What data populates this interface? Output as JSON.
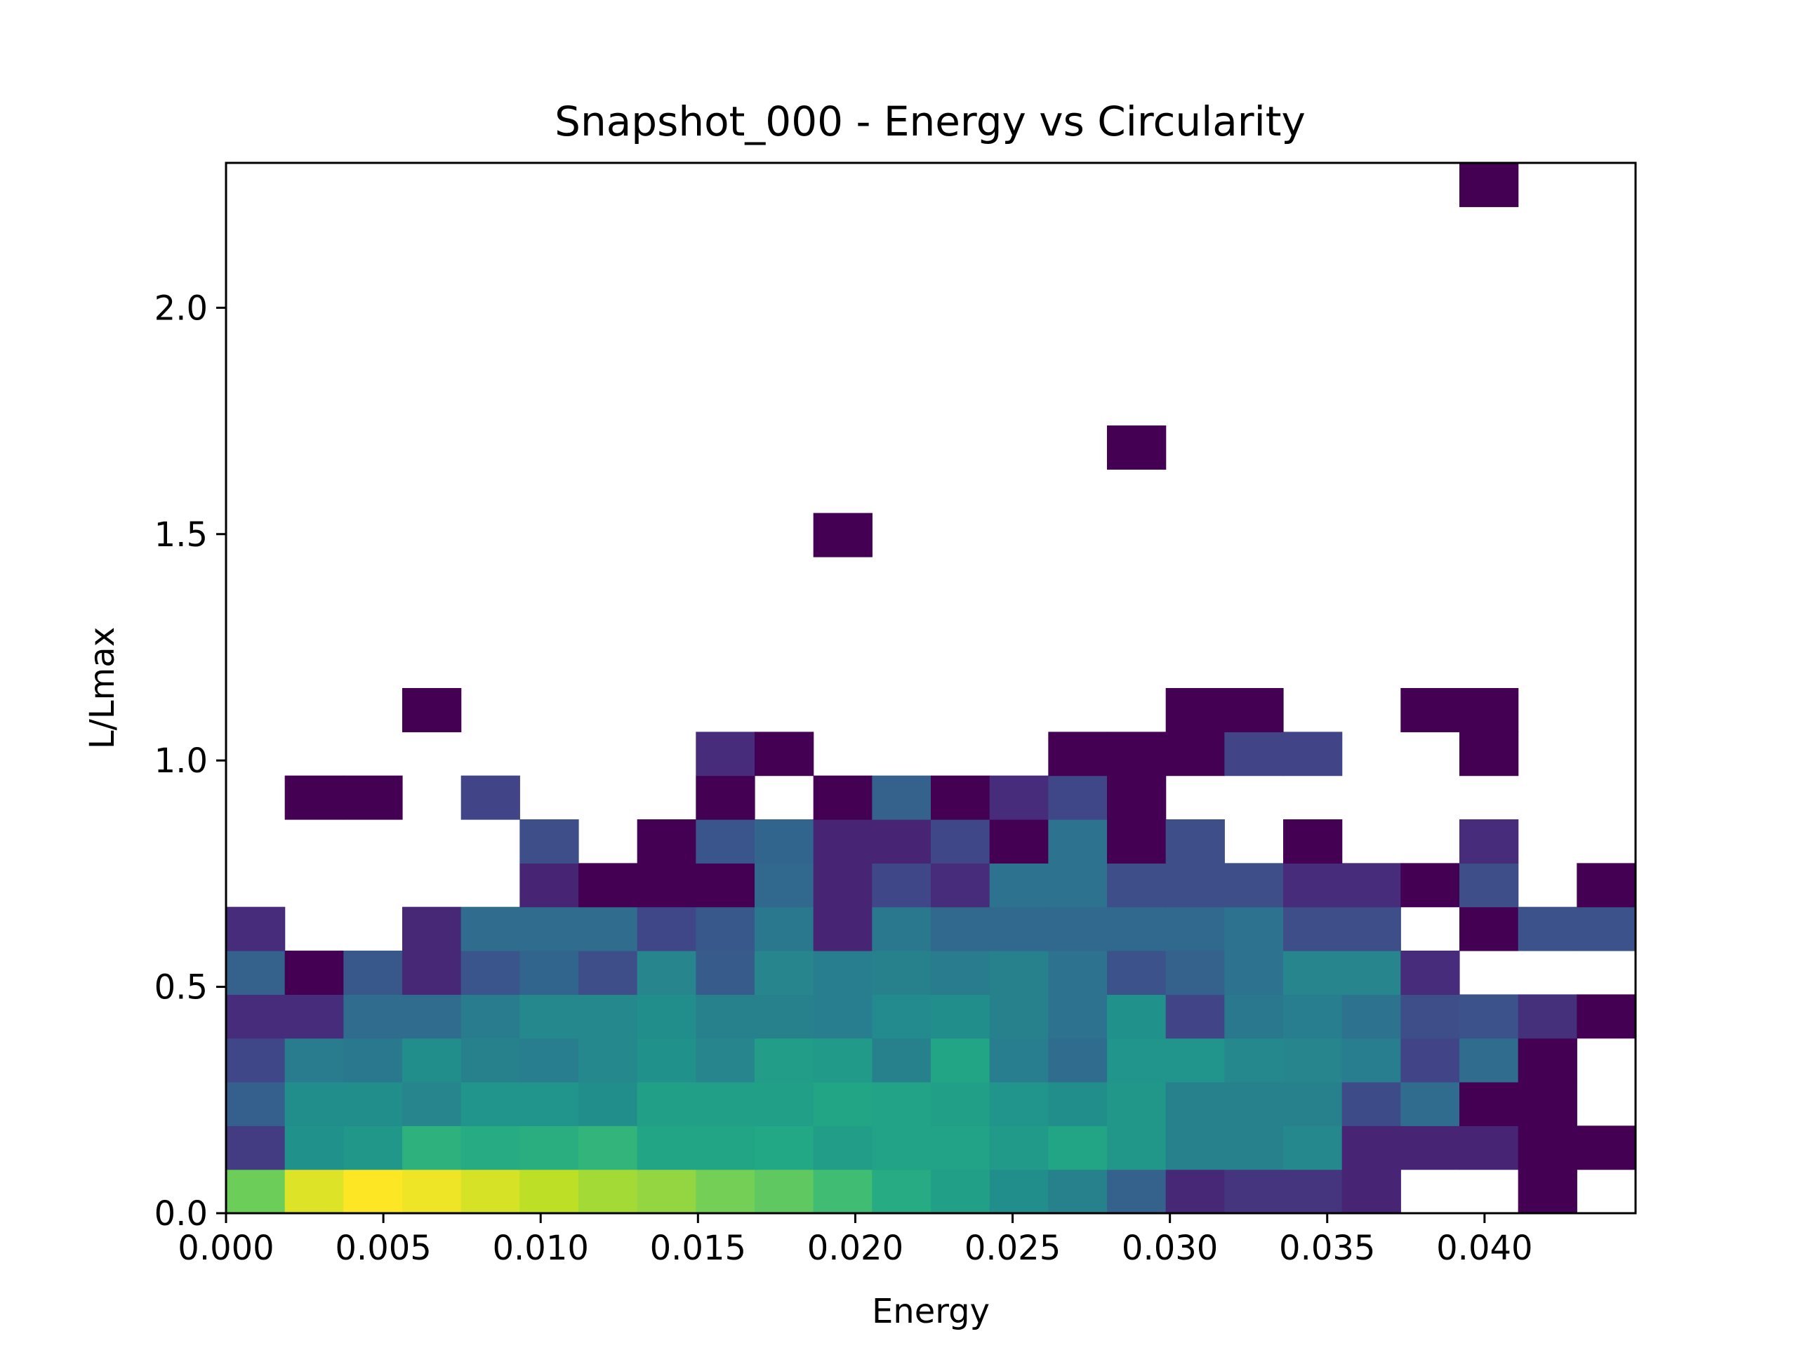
{
  "chart_data": {
    "type": "heatmap",
    "title": "Snapshot_000 - Energy vs Circularity",
    "xlabel": "Energy",
    "ylabel": "L/Lmax",
    "xlim": [
      0.0,
      0.0448
    ],
    "ylim": [
      0.0,
      2.32
    ],
    "x_ticks": [
      "0.000",
      "0.005",
      "0.010",
      "0.015",
      "0.020",
      "0.025",
      "0.030",
      "0.035",
      "0.040"
    ],
    "y_ticks": [
      "0.0",
      "0.5",
      "1.0",
      "1.5",
      "2.0"
    ],
    "x_bin_edges": [
      0.0,
      0.001867,
      0.003733,
      0.0056,
      0.007467,
      0.009333,
      0.0112,
      0.013067,
      0.014933,
      0.0168,
      0.018667,
      0.020533,
      0.0224,
      0.024267,
      0.026133,
      0.028,
      0.029867,
      0.031733,
      0.0336,
      0.035467,
      0.037333,
      0.0392,
      0.041067,
      0.042933,
      0.0448
    ],
    "y_bin_edges": [
      0.0,
      0.0967,
      0.1933,
      0.29,
      0.3867,
      0.4833,
      0.58,
      0.6767,
      0.7733,
      0.87,
      0.9667,
      1.0633,
      1.16,
      1.2567,
      1.3533,
      1.45,
      1.5467,
      1.6433,
      1.74,
      1.8367,
      1.9333,
      2.03,
      2.1267,
      2.2233,
      2.32
    ],
    "colormap": "viridis",
    "color_scale": "log",
    "empty_bins": "white",
    "color_value_note_max": 4,
    "counts_rows_bottom_to_top": [
      [
        3.1,
        3.8,
        4.0,
        3.9,
        3.75,
        3.6,
        3.45,
        3.35,
        3.15,
        3.0,
        2.75,
        2.45,
        2.25,
        1.95,
        1.75,
        1.25,
        0.45,
        0.6,
        0.6,
        0.4,
        null,
        null,
        0.0,
        null
      ],
      [
        0.7,
        2.0,
        2.1,
        2.55,
        2.45,
        2.5,
        2.6,
        2.35,
        2.35,
        2.4,
        2.2,
        2.3,
        2.3,
        2.15,
        2.35,
        2.1,
        1.75,
        1.75,
        1.85,
        0.4,
        0.4,
        0.4,
        0.0,
        0.0
      ],
      [
        1.2,
        1.95,
        1.95,
        1.8,
        2.05,
        2.05,
        1.95,
        2.25,
        2.25,
        2.25,
        2.35,
        2.3,
        2.25,
        2.05,
        1.95,
        2.1,
        1.75,
        1.75,
        1.75,
        0.9,
        1.4,
        0.0,
        0.0,
        null
      ],
      [
        0.85,
        1.65,
        1.6,
        1.95,
        1.75,
        1.7,
        1.85,
        2.0,
        1.8,
        2.2,
        2.15,
        1.75,
        2.35,
        1.7,
        1.4,
        2.05,
        2.05,
        1.85,
        1.8,
        1.7,
        0.8,
        1.4,
        0.0,
        null
      ],
      [
        0.5,
        0.5,
        1.4,
        1.4,
        1.65,
        1.85,
        1.85,
        1.95,
        1.75,
        1.75,
        1.7,
        1.9,
        1.95,
        1.75,
        1.5,
        2.0,
        0.8,
        1.6,
        1.7,
        1.5,
        0.95,
        1.0,
        0.55,
        0.0
      ],
      [
        1.25,
        0.0,
        1.1,
        0.45,
        1.05,
        1.3,
        0.95,
        1.8,
        1.15,
        1.8,
        1.7,
        1.75,
        1.65,
        1.75,
        1.5,
        1.0,
        1.25,
        1.5,
        1.8,
        1.8,
        0.5,
        null,
        null,
        null
      ],
      [
        0.5,
        null,
        null,
        0.45,
        1.4,
        1.4,
        1.4,
        0.85,
        1.1,
        1.6,
        0.4,
        1.6,
        1.35,
        1.35,
        1.35,
        1.35,
        1.35,
        1.5,
        0.95,
        0.95,
        null,
        0.0,
        1.0,
        1.0
      ],
      [
        null,
        null,
        null,
        null,
        null,
        0.4,
        0.0,
        0.0,
        0.0,
        1.35,
        0.4,
        0.85,
        0.5,
        1.5,
        1.5,
        0.95,
        0.95,
        0.95,
        0.5,
        0.5,
        0.0,
        0.95,
        null,
        0.0
      ],
      [
        null,
        null,
        null,
        null,
        null,
        0.95,
        null,
        0.0,
        1.05,
        1.3,
        0.4,
        0.4,
        0.85,
        0.0,
        1.5,
        0.0,
        0.95,
        null,
        0.0,
        null,
        null,
        0.5,
        null,
        null
      ],
      [
        null,
        0.0,
        0.0,
        null,
        0.8,
        null,
        null,
        null,
        0.0,
        null,
        0.0,
        1.25,
        0.0,
        0.5,
        0.85,
        0.0,
        null,
        null,
        null,
        null,
        null,
        null,
        null,
        null
      ],
      [
        null,
        null,
        null,
        null,
        null,
        null,
        null,
        null,
        0.5,
        0.0,
        null,
        null,
        null,
        null,
        0.0,
        0.0,
        0.0,
        0.8,
        0.8,
        null,
        null,
        0.0,
        null,
        null
      ],
      [
        null,
        null,
        null,
        0.0,
        null,
        null,
        null,
        null,
        null,
        null,
        null,
        null,
        null,
        null,
        null,
        null,
        0.0,
        0.0,
        null,
        null,
        0.0,
        0.0,
        null,
        null
      ],
      [
        null,
        null,
        null,
        null,
        null,
        null,
        null,
        null,
        null,
        null,
        null,
        null,
        null,
        null,
        null,
        null,
        null,
        null,
        null,
        null,
        null,
        null,
        null,
        null
      ],
      [
        null,
        null,
        null,
        null,
        null,
        null,
        null,
        null,
        null,
        null,
        null,
        null,
        null,
        null,
        null,
        null,
        null,
        null,
        null,
        null,
        null,
        null,
        null,
        null
      ],
      [
        null,
        null,
        null,
        null,
        null,
        null,
        null,
        null,
        null,
        null,
        null,
        null,
        null,
        null,
        null,
        null,
        null,
        null,
        null,
        null,
        null,
        null,
        null,
        null
      ],
      [
        null,
        null,
        null,
        null,
        null,
        null,
        null,
        null,
        null,
        null,
        0.0,
        null,
        null,
        null,
        null,
        null,
        null,
        null,
        null,
        null,
        null,
        null,
        null,
        null
      ],
      [
        null,
        null,
        null,
        null,
        null,
        null,
        null,
        null,
        null,
        null,
        null,
        null,
        null,
        null,
        null,
        null,
        null,
        null,
        null,
        null,
        null,
        null,
        null,
        null
      ],
      [
        null,
        null,
        null,
        null,
        null,
        null,
        null,
        null,
        null,
        null,
        null,
        null,
        null,
        null,
        null,
        0.0,
        null,
        null,
        null,
        null,
        null,
        null,
        null,
        null
      ],
      [
        null,
        null,
        null,
        null,
        null,
        null,
        null,
        null,
        null,
        null,
        null,
        null,
        null,
        null,
        null,
        null,
        null,
        null,
        null,
        null,
        null,
        null,
        null,
        null
      ],
      [
        null,
        null,
        null,
        null,
        null,
        null,
        null,
        null,
        null,
        null,
        null,
        null,
        null,
        null,
        null,
        null,
        null,
        null,
        null,
        null,
        null,
        null,
        null,
        null
      ],
      [
        null,
        null,
        null,
        null,
        null,
        null,
        null,
        null,
        null,
        null,
        null,
        null,
        null,
        null,
        null,
        null,
        null,
        null,
        null,
        null,
        null,
        null,
        null,
        null
      ],
      [
        null,
        null,
        null,
        null,
        null,
        null,
        null,
        null,
        null,
        null,
        null,
        null,
        null,
        null,
        null,
        null,
        null,
        null,
        null,
        null,
        null,
        null,
        null,
        null
      ],
      [
        null,
        null,
        null,
        null,
        null,
        null,
        null,
        null,
        null,
        null,
        null,
        null,
        null,
        null,
        null,
        null,
        null,
        null,
        null,
        null,
        null,
        null,
        null,
        null
      ],
      [
        null,
        null,
        null,
        null,
        null,
        null,
        null,
        null,
        null,
        null,
        null,
        null,
        null,
        null,
        null,
        null,
        null,
        null,
        null,
        null,
        null,
        0.0,
        null,
        null
      ]
    ]
  }
}
